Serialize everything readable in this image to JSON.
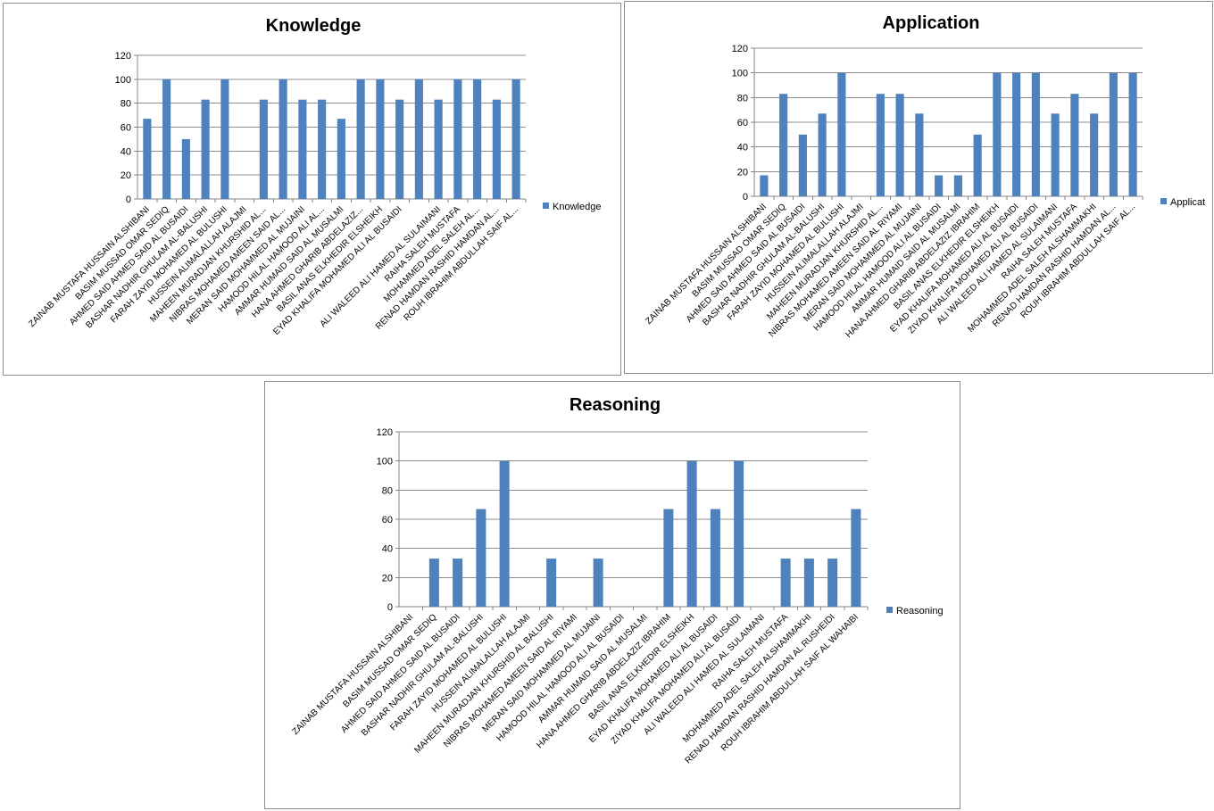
{
  "chart_data": [
    {
      "type": "bar",
      "title": "Knowledge",
      "xlabel": "",
      "ylabel": "",
      "ylim": [
        0,
        120
      ],
      "yticks": [
        0,
        20,
        40,
        60,
        80,
        100,
        120
      ],
      "grid": true,
      "legend_position": "right",
      "series": [
        {
          "name": "Knowledge",
          "color": "#4f81bd",
          "values": [
            67,
            100,
            50,
            83,
            100,
            null,
            83,
            100,
            83,
            83,
            67,
            100,
            100,
            83,
            100,
            83,
            100,
            100,
            83,
            100
          ]
        }
      ],
      "categories": [
        "ZAINAB MUSTAFA HUSSAIN ALSHIBANI",
        "BASIM MUSSAD OMAR SEDIQ",
        "AHMED SAID AHMED  SAID AL BUSAIDI",
        "BASHAR NADHIR GHULAM AL-BALUSHI",
        "FARAH ZAYID MOHAMED AL BULUSHI",
        "HUSSEIN ALIMALALLAH ALAJMI",
        "MAHEEN MURADJAN KHURSHID  AL...",
        "NIBRAS MOHAMED AMEEN SAID AL...",
        "MERAN SAID MOHAMMED AL MUJAINI",
        "HAMOOD HILAL HAMOOD ALI  AL...",
        "AMMAR HUMAID SAID AL MUSALMI",
        "HANA AHMED GHARIB ABDELAZIZ...",
        "BASIL ANAS ELKHEDIR ELSHEIKH",
        "EYAD KHALIFA MOHAMED ALI AL BUSAIDI",
        "",
        "ALI WALEED ALI HAMED  AL SULAIMANI",
        "RAIHA SALEH MUSTAFA",
        "MOHAMMED ADEL SALEH AL...",
        "RENAD HAMDAN RASHID HAMDAN AL...",
        "ROUH IBRAHIM  ABDULLAH SAIF AL..."
      ]
    },
    {
      "type": "bar",
      "title": "Application",
      "xlabel": "",
      "ylabel": "",
      "ylim": [
        0,
        120
      ],
      "yticks": [
        0,
        20,
        40,
        60,
        80,
        100,
        120
      ],
      "grid": true,
      "legend_position": "right",
      "series": [
        {
          "name": "Applicat",
          "color": "#4f81bd",
          "values": [
            17,
            83,
            50,
            67,
            100,
            null,
            83,
            83,
            67,
            17,
            17,
            50,
            100,
            100,
            100,
            67,
            83,
            67,
            100,
            100
          ]
        }
      ],
      "categories": [
        "ZAINAB MUSTAFA HUSSAIN ALSHIBANI",
        "BASIM MUSSAD OMAR SEDIQ",
        "AHMED SAID AHMED  SAID AL BUSAIDI",
        "BASHAR NADHIR GHULAM AL-BALUSHI",
        "FARAH ZAYID MOHAMED AL BULUSHI",
        "HUSSEIN ALIMALALLAH ALAJMI",
        "MAHEEN MURADJAN KHURSHID  AL...",
        "NIBRAS MOHAMED AMEEN SAID AL RIYAMI",
        "MERAN SAID MOHAMMED AL MUJAINI",
        "HAMOOD HILAL HAMOOD ALI  AL BUSAIDI",
        "AMMAR HUMAID SAID AL MUSALMI",
        "HANA AHMED GHARIB ABDELAZIZ IBRAHIM",
        "BASIL ANAS ELKHEDIR ELSHEIKH",
        "EYAD KHALIFA MOHAMED ALI AL BUSAIDI",
        "ZIYAD KHALIFA MOHAMED ALI AL BUSAIDI",
        "ALI WALEED ALI HAMED  AL SULAIMANI",
        "RAIHA SALEH MUSTAFA",
        "MOHAMMED ADEL SALEH ALSHAMMAKHI",
        "RENAD HAMDAN RASHID HAMDAN AL...",
        "ROUH IBRAHIM  ABDULLAH SAIF AL..."
      ]
    },
    {
      "type": "bar",
      "title": "Reasoning",
      "xlabel": "",
      "ylabel": "",
      "ylim": [
        0,
        120
      ],
      "yticks": [
        0,
        20,
        40,
        60,
        80,
        100,
        120
      ],
      "grid": true,
      "legend_position": "right",
      "series": [
        {
          "name": "Reasoning",
          "color": "#4f81bd",
          "values": [
            null,
            33,
            33,
            67,
            100,
            null,
            33,
            null,
            33,
            null,
            null,
            67,
            100,
            67,
            100,
            null,
            33,
            33,
            33,
            67
          ]
        }
      ],
      "categories": [
        "ZAINAB MUSTAFA HUSSAIN ALSHIBANI",
        "BASIM MUSSAD OMAR SEDIQ",
        "AHMED SAID AHMED  SAID AL BUSAIDI",
        "BASHAR NADHIR GHULAM AL-BALUSHI",
        "FARAH ZAYID MOHAMED  AL BULUSHI",
        "HUSSEIN ALIMALALLAH ALAJMI",
        "MAHEEN MURADJAN KHURSHID  AL BALUSHI",
        "NIBRAS MOHAMED AMEEN SAID AL RIYAMI",
        "MERAN SAID MOHAMMED AL MUJAINI",
        "HAMOOD HILAL HAMOOD ALI  AL BUSAIDI",
        "AMMAR HUMAID SAID AL MUSALMI",
        "HANA AHMED GHARIB ABDELAZIZ IBRAHIM",
        "BASIL ANAS ELKHEDIR ELSHEIKH",
        "EYAD KHALIFA MOHAMED ALI AL BUSAIDI",
        "ZIYAD KHALIFA MOHAMED ALI AL BUSAIDI",
        "ALI WALEED ALI HAMED  AL SULAIMANI",
        "RAIHA SALEH MUSTAFA",
        "MOHAMMED ADEL SALEH ALSHAMMAKHI",
        "RENAD HAMDAN RASHID HAMDAN AL RUSHEIDI",
        "ROUH IBRAHIM  ABDULLAH SAIF AL WAHAIBI"
      ]
    }
  ]
}
